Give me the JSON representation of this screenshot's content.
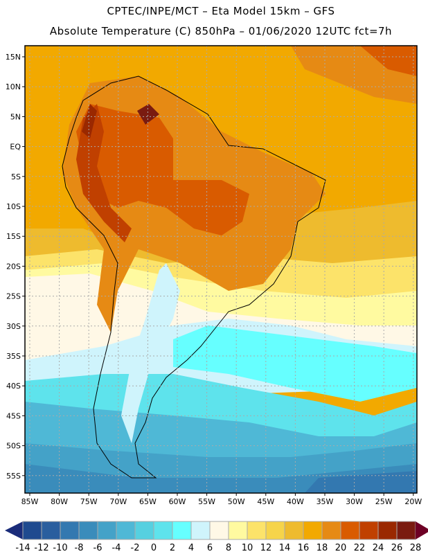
{
  "header": {
    "line1": "CPTEC/INPE/MCT –  Eta Model 15km – GFS",
    "line2": "Absolute Temperature (C) 850hPa – 01/06/2020 12UTC fct=7h"
  },
  "axes": {
    "lat_labels": [
      "15N",
      "10N",
      "5N",
      "EQ",
      "5S",
      "10S",
      "15S",
      "20S",
      "25S",
      "30S",
      "35S",
      "40S",
      "45S",
      "50S",
      "55S"
    ],
    "lon_labels": [
      "85W",
      "80W",
      "75W",
      "70W",
      "65W",
      "60W",
      "55W",
      "50W",
      "45W",
      "40W",
      "35W",
      "30W",
      "25W",
      "20W"
    ]
  },
  "colorbar": {
    "labels": [
      "-14",
      "-12",
      "-10",
      "-8",
      "-6",
      "-4",
      "-2",
      "0",
      "2",
      "4",
      "6",
      "8",
      "10",
      "12",
      "14",
      "16",
      "18",
      "20",
      "22",
      "24",
      "26",
      "28"
    ],
    "colors": [
      "#1f4a8f",
      "#2a5e9e",
      "#3378b0",
      "#3a8cbb",
      "#44a2c8",
      "#4fb8d6",
      "#56d0e0",
      "#5ee3ec",
      "#66ffff",
      "#cff4fc",
      "#fff8e6",
      "#fffaa0",
      "#fce36a",
      "#f6d44a",
      "#eebb2e",
      "#f2a900",
      "#e68a14",
      "#d95b00",
      "#c04000",
      "#9a2800",
      "#7a1b10"
    ],
    "under_color": "#1a2c7a",
    "over_color": "#6e0025"
  }
}
